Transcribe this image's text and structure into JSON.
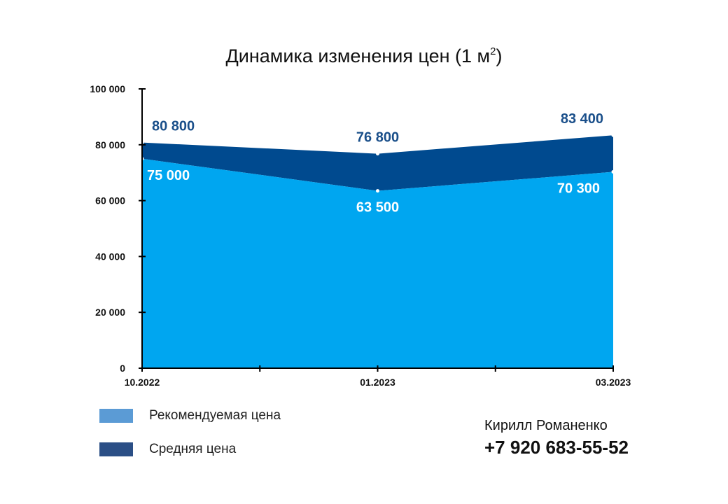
{
  "chart_data": {
    "type": "area",
    "title": "Динамика изменения цен (1 м",
    "title_superscript": "2",
    "title_tail": ")",
    "x": [
      "10.2022",
      "01.2023",
      "03.2023"
    ],
    "series": [
      {
        "name": "Рекомендуемая цена",
        "values": [
          75000,
          63500,
          70300
        ],
        "labels": [
          "75 000",
          "63 500",
          "70 300"
        ],
        "color": "#00a6f0"
      },
      {
        "name": "Средняя цена",
        "values": [
          80800,
          76800,
          83400
        ],
        "labels": [
          "80 800",
          "76 800",
          "83 400"
        ],
        "color": "#004a8f"
      }
    ],
    "ylim": [
      0,
      100000
    ],
    "yticks": [
      {
        "value": 0,
        "label": "0"
      },
      {
        "value": 20000,
        "label": "20 000"
      },
      {
        "value": 40000,
        "label": "40 000"
      },
      {
        "value": 60000,
        "label": "60 000"
      },
      {
        "value": 80000,
        "label": "80 000"
      },
      {
        "value": 100000,
        "label": "100 000"
      }
    ],
    "grid": false,
    "legend_position": "bottom-left"
  },
  "legend": {
    "items": [
      {
        "label": "Рекомендуемая цена",
        "color": "#5b9bd5"
      },
      {
        "label": "Средняя цена",
        "color": "#2b4f86"
      }
    ]
  },
  "contact": {
    "name": "Кирилл Романенко",
    "phone": "+7 920 683-55-52"
  }
}
